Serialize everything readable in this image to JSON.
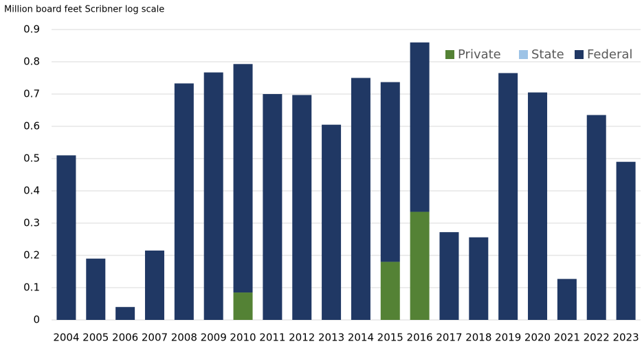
{
  "chart_data": {
    "type": "stacked_bar",
    "y_axis_label": "Million board feet Scribner log scale",
    "categories": [
      "2004",
      "2005",
      "2006",
      "2007",
      "2008",
      "2009",
      "2010",
      "2011",
      "2012",
      "2013",
      "2014",
      "2015",
      "2016",
      "2017",
      "2018",
      "2019",
      "2020",
      "2021",
      "2022",
      "2023"
    ],
    "series": [
      {
        "name": "Private",
        "color": "#548235",
        "values": [
          0,
          0,
          0,
          0,
          0,
          0,
          0.085,
          0,
          0,
          0,
          0,
          0.18,
          0.335,
          0,
          0,
          0,
          0,
          0,
          0,
          0
        ]
      },
      {
        "name": "State",
        "color": "#9dc3e6",
        "values": [
          0,
          0,
          0,
          0,
          0,
          0,
          0,
          0,
          0,
          0,
          0,
          0,
          0,
          0,
          0,
          0,
          0,
          0,
          0,
          0
        ]
      },
      {
        "name": "Federal",
        "color": "#203864",
        "values": [
          0.51,
          0.19,
          0.04,
          0.215,
          0.733,
          0.767,
          0.708,
          0.7,
          0.697,
          0.605,
          0.75,
          0.557,
          0.525,
          0.272,
          0.256,
          0.765,
          0.705,
          0.127,
          0.635,
          0.49
        ]
      }
    ],
    "ylim": [
      0,
      0.9
    ],
    "yticks": [
      0,
      0.1,
      0.2,
      0.3,
      0.4,
      0.5,
      0.6,
      0.7,
      0.8,
      0.9
    ],
    "grid": true,
    "legend": "top-right"
  }
}
